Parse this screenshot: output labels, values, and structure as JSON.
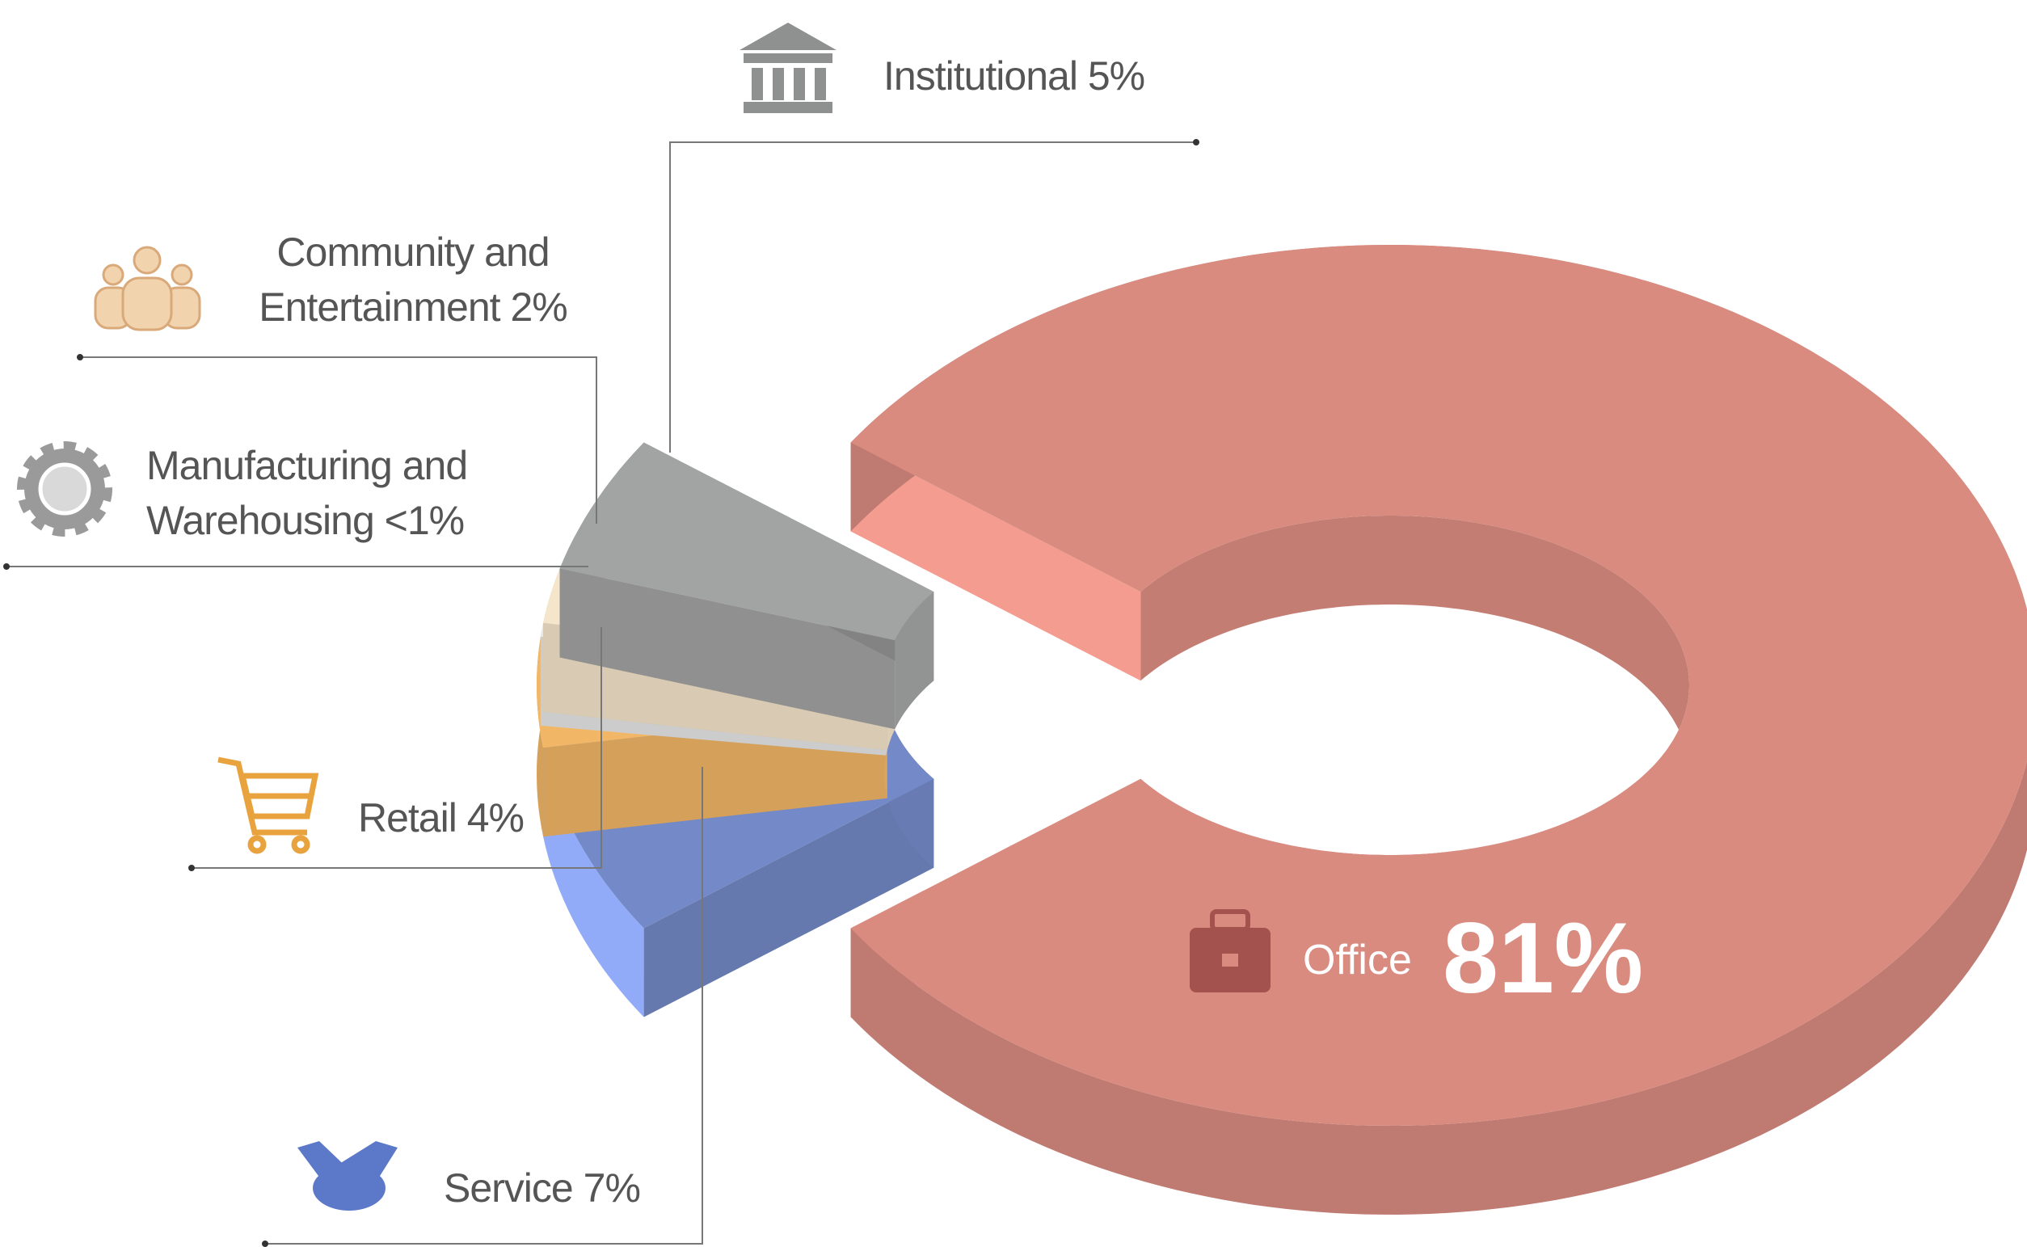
{
  "chart_data": {
    "type": "donut3d",
    "categories": [
      "Service",
      "Retail",
      "Manufacturing and Warehousing",
      "Community and Entertainment",
      "Institutional",
      "Office"
    ],
    "values": [
      7,
      4,
      0.5,
      2,
      5,
      81
    ],
    "value_labels": [
      "7%",
      "4%",
      "<1%",
      "2%",
      "5%",
      "81%"
    ],
    "colors": [
      "#7489c7",
      "#f2b766",
      "#e8e8e8",
      "#f5e5cb",
      "#a2a4a3",
      "#d98b80"
    ]
  }
}
